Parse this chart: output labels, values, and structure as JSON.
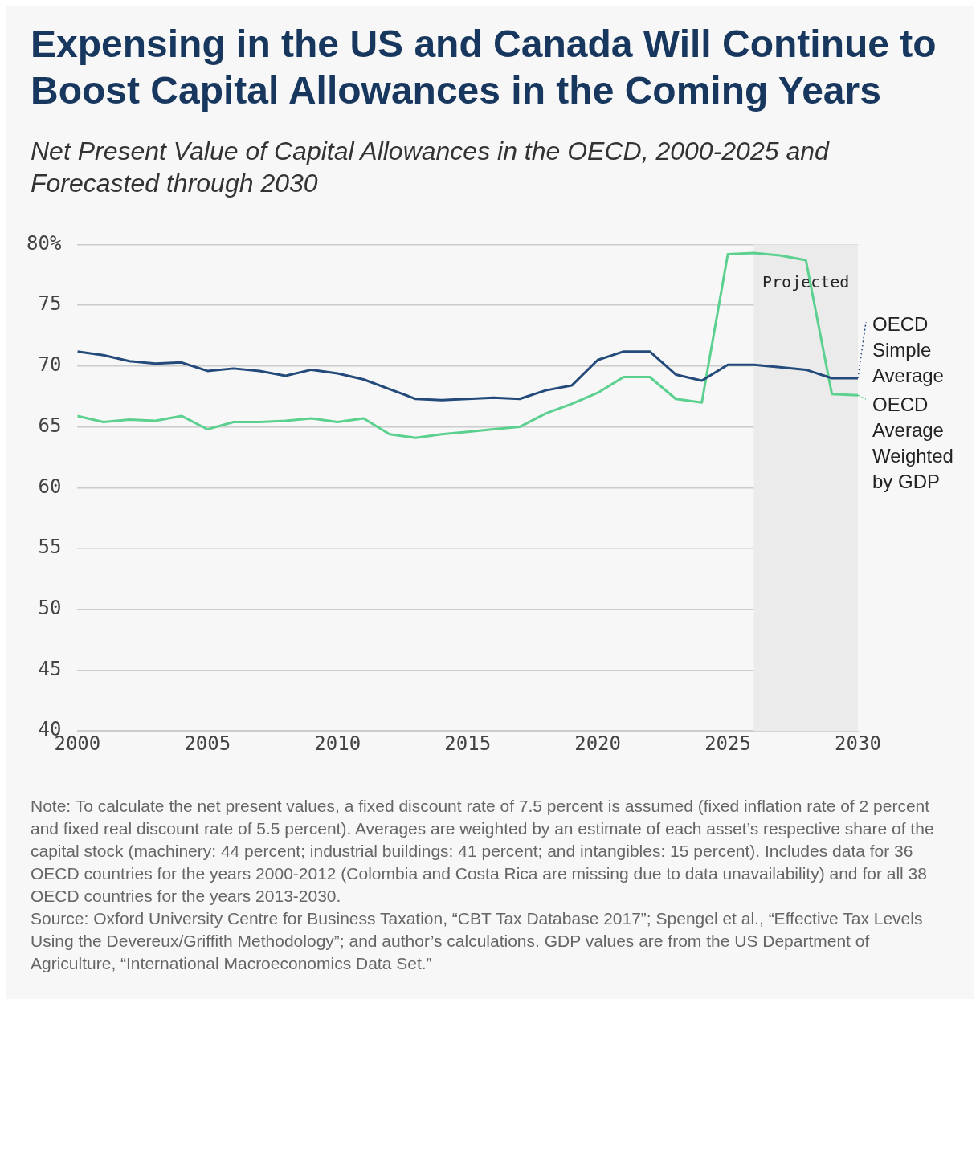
{
  "chart_data": {
    "type": "line",
    "title": "Expensing in the US and Canada Will Continue to Boost Capital Allowances in the Coming Years",
    "subtitle": "Net Present Value of Capital Allowances in the OECD, 2000-2025 and Forecasted through 2030",
    "x": [
      2000,
      2001,
      2002,
      2003,
      2004,
      2005,
      2006,
      2007,
      2008,
      2009,
      2010,
      2011,
      2012,
      2013,
      2014,
      2015,
      2016,
      2017,
      2018,
      2019,
      2020,
      2021,
      2022,
      2023,
      2024,
      2025,
      2026,
      2027,
      2028,
      2029,
      2030
    ],
    "series": [
      {
        "name": "OECD Simple Average",
        "color": "#234a7a",
        "values": [
          71.2,
          70.9,
          70.4,
          70.2,
          70.3,
          69.6,
          69.8,
          69.6,
          69.2,
          69.7,
          69.4,
          68.9,
          68.1,
          67.3,
          67.2,
          67.3,
          67.4,
          67.3,
          68.0,
          68.4,
          70.5,
          71.2,
          71.2,
          69.3,
          68.8,
          70.1,
          70.1,
          69.9,
          69.7,
          69.0,
          69.0
        ]
      },
      {
        "name": "OECD Average Weighted by GDP",
        "color": "#5cd08f",
        "values": [
          65.9,
          65.4,
          65.6,
          65.5,
          65.9,
          64.8,
          65.4,
          65.4,
          65.5,
          65.7,
          65.4,
          65.7,
          64.4,
          64.1,
          64.4,
          64.6,
          64.8,
          65.0,
          66.1,
          66.9,
          67.8,
          69.1,
          69.1,
          67.3,
          67.0,
          79.2,
          79.3,
          79.1,
          78.7,
          67.7,
          67.6
        ]
      }
    ],
    "xlim": [
      2000,
      2030
    ],
    "xticks": [
      2000,
      2005,
      2010,
      2015,
      2020,
      2025,
      2030
    ],
    "ylim": [
      40,
      80
    ],
    "yticks": [
      40,
      45,
      50,
      55,
      60,
      65,
      70,
      75,
      {
        "value": 80,
        "label": "80%"
      }
    ],
    "grid": "y",
    "legend": "right",
    "marker": "none",
    "line_style": "solid",
    "bands": [
      {
        "axis": "x",
        "from": 2026,
        "to": 2030,
        "label": "Projected",
        "color": "#ebebeb"
      }
    ],
    "annotations": [
      "Note: To calculate the net present values, a fixed discount rate of 7.5 percent is assumed (fixed inflation rate of 2 percent and fixed real discount rate of 5.5 percent). Averages are weighted by an estimate of each asset’s respective share of the capital stock (machinery: 44 percent; industrial buildings: 41 percent; and intangibles: 15 percent). Includes data for 36 OECD countries for the years 2000-2012 (Colombia and Costa Rica are missing due to data unavailability) and for all 38 OECD countries for the years 2013-2030.",
      "Source: Oxford University Centre for Business Taxation, “CBT Tax Database 2017”; Spengel et al., “Effective Tax Levels Using the Devereux/Griffith Methodology”; and author’s calculations. GDP values are from the US Department of Agriculture, “International Macroeconomics Data Set.”"
    ]
  }
}
